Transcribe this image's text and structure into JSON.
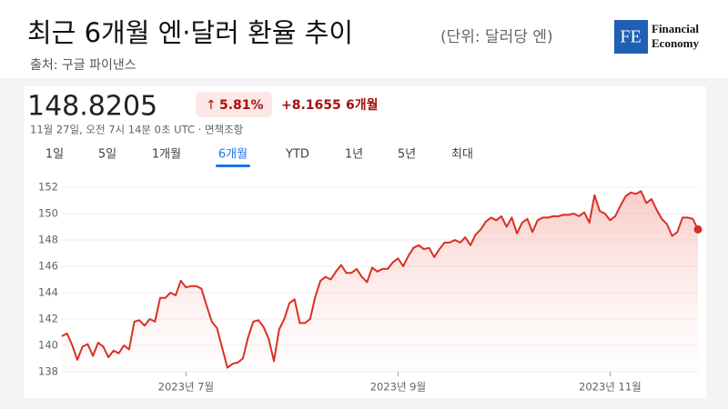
{
  "header": {
    "title": "최근 6개월 엔·달러 환율 추이",
    "subtitle": "(단위: 달러당 엔)",
    "source": "출처: 구글 파이낸스"
  },
  "logo": {
    "mark": "FE",
    "line1": "Financial",
    "line2": "Economy"
  },
  "quote": {
    "price": "148.8205",
    "change_pct": "5.81%",
    "change_abs": "+8.1655",
    "period": "6개월",
    "timestamp": "11월 27일, 오전 7시 14분 0초 UTC · 면책조항"
  },
  "tabs": {
    "items": [
      "1일",
      "5일",
      "1개월",
      "6개월",
      "YTD",
      "1년",
      "5년",
      "최대"
    ],
    "selected": 3
  },
  "chart_data": {
    "type": "line",
    "color": "#d93025",
    "grid": true,
    "ylim": [
      138,
      152
    ],
    "yticks": [
      138,
      140,
      142,
      144,
      146,
      148,
      150,
      152
    ],
    "categories": [
      null,
      null,
      null,
      null,
      null,
      null,
      null,
      null,
      null,
      null,
      null,
      null,
      null,
      null,
      null,
      null,
      null,
      null,
      null,
      null,
      null,
      null,
      null,
      null,
      "2023년 7월",
      null,
      null,
      null,
      null,
      null,
      null,
      null,
      null,
      null,
      null,
      null,
      null,
      null,
      null,
      null,
      null,
      null,
      null,
      null,
      null,
      null,
      null,
      null,
      null,
      null,
      null,
      null,
      null,
      null,
      null,
      null,
      null,
      null,
      null,
      null,
      null,
      null,
      null,
      null,
      null,
      "2023년 9월",
      null,
      null,
      null,
      null,
      null,
      null,
      null,
      null,
      null,
      null,
      null,
      null,
      null,
      null,
      null,
      null,
      null,
      null,
      null,
      null,
      null,
      null,
      null,
      null,
      null,
      null,
      null,
      null,
      null,
      null,
      null,
      null,
      null,
      null,
      null,
      null,
      null,
      null,
      null,
      null,
      "2023년 11월",
      null,
      null,
      null,
      null,
      null,
      null,
      null,
      null,
      null,
      null,
      null,
      null,
      null,
      null,
      null,
      null,
      null
    ],
    "values": [
      140.7,
      140.9,
      140.0,
      138.9,
      139.9,
      140.1,
      139.2,
      140.2,
      139.9,
      139.1,
      139.6,
      139.4,
      140.0,
      139.7,
      141.8,
      141.9,
      141.5,
      142.0,
      141.8,
      143.6,
      143.6,
      144.0,
      143.8,
      144.9,
      144.4,
      144.5,
      144.5,
      144.3,
      143.0,
      141.8,
      141.3,
      139.8,
      138.3,
      138.6,
      138.7,
      139.0,
      140.6,
      141.8,
      141.9,
      141.4,
      140.5,
      138.8,
      141.2,
      142.0,
      143.2,
      143.5,
      141.7,
      141.7,
      142.0,
      143.7,
      144.9,
      145.2,
      145.0,
      145.6,
      146.1,
      145.5,
      145.5,
      145.8,
      145.2,
      144.8,
      145.9,
      145.6,
      145.8,
      145.8,
      146.3,
      146.6,
      146.0,
      146.8,
      147.4,
      147.6,
      147.3,
      147.4,
      146.7,
      147.3,
      147.8,
      147.8,
      148.0,
      147.8,
      148.2,
      147.6,
      148.4,
      148.8,
      149.4,
      149.7,
      149.5,
      149.8,
      149.0,
      149.7,
      148.5,
      149.3,
      149.6,
      148.6,
      149.5,
      149.7,
      149.7,
      149.8,
      149.8,
      149.9,
      149.9,
      150.0,
      149.8,
      150.1,
      149.3,
      151.4,
      150.2,
      150.0,
      149.5,
      149.8,
      150.6,
      151.3,
      151.6,
      151.5,
      151.7,
      150.8,
      151.1,
      150.3,
      149.6,
      149.2,
      148.3,
      148.6,
      149.7,
      149.7,
      149.6,
      148.8
    ]
  }
}
